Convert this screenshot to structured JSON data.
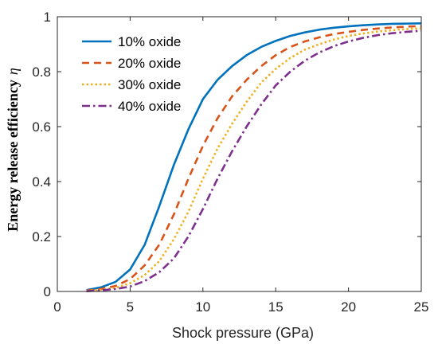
{
  "chart_data": {
    "type": "line",
    "title": "",
    "xlabel": "Shock pressure (GPa)",
    "ylabel": "Energy release efficiency",
    "ylabel_symbol": "η",
    "xlim": [
      0,
      25
    ],
    "ylim": [
      0,
      1
    ],
    "xticks": [
      0,
      5,
      10,
      15,
      20,
      25
    ],
    "yticks": [
      0,
      0.2,
      0.4,
      0.6,
      0.8,
      1
    ],
    "xtick_labels": [
      "0",
      "5",
      "10",
      "15",
      "20",
      "25"
    ],
    "ytick_labels": [
      "0",
      "0.2",
      "0.4",
      "0.6",
      "0.8",
      "1"
    ],
    "grid": false,
    "legend_position": "top-left",
    "series": [
      {
        "name": "10% oxide",
        "color": "#0072BD",
        "style": "solid",
        "x": [
          2,
          3,
          4,
          5,
          6,
          7,
          8,
          9,
          10,
          11,
          12,
          13,
          14,
          15,
          16,
          17,
          18,
          19,
          20,
          21,
          22,
          23,
          24,
          25
        ],
        "y": [
          0.005,
          0.015,
          0.035,
          0.08,
          0.17,
          0.31,
          0.46,
          0.59,
          0.7,
          0.77,
          0.82,
          0.86,
          0.89,
          0.912,
          0.93,
          0.943,
          0.953,
          0.96,
          0.965,
          0.969,
          0.972,
          0.974,
          0.975,
          0.976
        ]
      },
      {
        "name": "20% oxide",
        "color": "#D95319",
        "style": "dashed",
        "x": [
          2,
          3,
          4,
          5,
          6,
          7,
          8,
          9,
          10,
          11,
          12,
          13,
          14,
          15,
          16,
          17,
          18,
          19,
          20,
          21,
          22,
          23,
          24,
          25
        ],
        "y": [
          0.003,
          0.009,
          0.02,
          0.045,
          0.095,
          0.17,
          0.28,
          0.41,
          0.53,
          0.63,
          0.71,
          0.77,
          0.82,
          0.86,
          0.89,
          0.91,
          0.925,
          0.937,
          0.945,
          0.952,
          0.957,
          0.961,
          0.964,
          0.966
        ]
      },
      {
        "name": "30% oxide",
        "color": "#EDB120",
        "style": "dotted",
        "x": [
          2,
          3,
          4,
          5,
          6,
          7,
          8,
          9,
          10,
          11,
          12,
          13,
          14,
          15,
          16,
          17,
          18,
          19,
          20,
          21,
          22,
          23,
          24,
          25
        ],
        "y": [
          0.002,
          0.006,
          0.013,
          0.03,
          0.06,
          0.11,
          0.19,
          0.29,
          0.41,
          0.52,
          0.61,
          0.69,
          0.76,
          0.81,
          0.85,
          0.88,
          0.9,
          0.917,
          0.93,
          0.939,
          0.946,
          0.951,
          0.955,
          0.958
        ]
      },
      {
        "name": "40% oxide",
        "color": "#7E2F8E",
        "style": "dashdot",
        "x": [
          2,
          3,
          4,
          5,
          6,
          7,
          8,
          9,
          10,
          11,
          12,
          13,
          14,
          15,
          16,
          17,
          18,
          19,
          20,
          21,
          22,
          23,
          24,
          25
        ],
        "y": [
          0.001,
          0.004,
          0.009,
          0.018,
          0.038,
          0.07,
          0.12,
          0.2,
          0.3,
          0.41,
          0.51,
          0.6,
          0.68,
          0.75,
          0.8,
          0.84,
          0.87,
          0.893,
          0.91,
          0.923,
          0.933,
          0.94,
          0.945,
          0.949
        ]
      }
    ]
  }
}
